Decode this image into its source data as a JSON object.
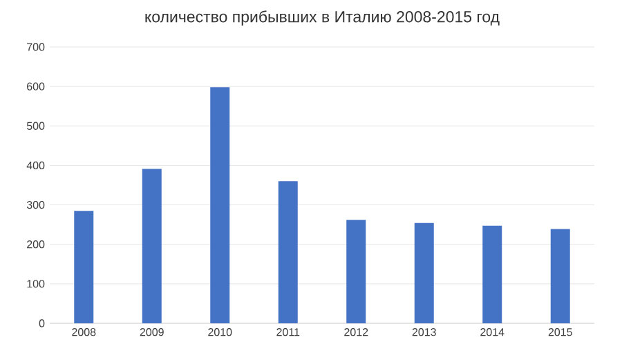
{
  "chart_data": {
    "type": "bar",
    "title": "количество прибывших в Италию 2008-2015 год",
    "categories": [
      "2008",
      "2009",
      "2010",
      "2011",
      "2012",
      "2013",
      "2014",
      "2015"
    ],
    "values": [
      285,
      391,
      598,
      360,
      262,
      254,
      247,
      239
    ],
    "color": "#4472c4",
    "ylim": [
      0,
      700
    ],
    "yticks": [
      0,
      100,
      200,
      300,
      400,
      500,
      600,
      700
    ],
    "grid": "y"
  }
}
